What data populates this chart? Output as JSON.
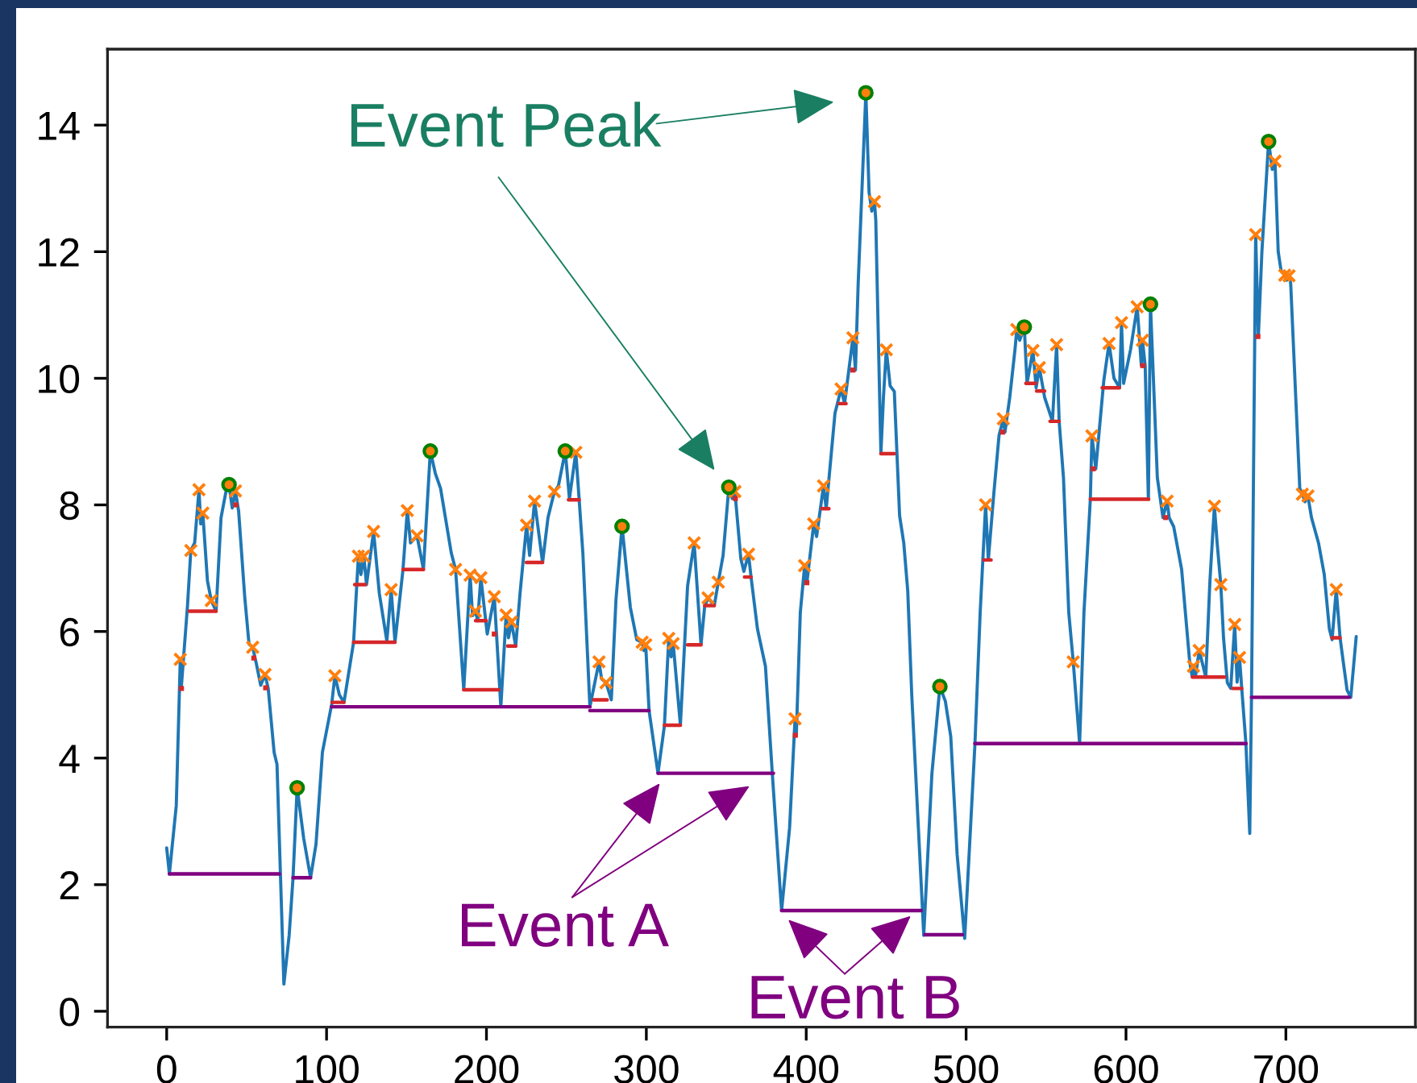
{
  "chart_data": {
    "type": "line",
    "xlim": [
      -37,
      781
    ],
    "ylim": [
      -0.25,
      15.2
    ],
    "xticks": [
      0,
      100,
      200,
      300,
      400,
      500,
      600,
      700
    ],
    "yticks": [
      0,
      2,
      4,
      6,
      8,
      10,
      12,
      14
    ],
    "series": [
      {
        "color": "#1f77b4",
        "x": [
          0,
          1.7,
          6,
          8.5,
          9.1,
          13,
          15.1,
          17.5,
          20.2,
          21.3,
          22.6,
          25.5,
          27.9,
          30.9,
          34,
          37,
          39,
          41,
          43,
          45,
          48.8,
          51.5,
          53.8,
          56,
          58.8,
          61.5,
          63.5,
          67.2,
          69,
          73.3,
          76.6,
          79,
          81.6,
          85.7,
          90,
          93.4,
          97.4,
          103.2,
          105.2,
          108,
          110.9,
          116.9,
          119.9,
          121.5,
          123.3,
          125,
          129.4,
          133,
          137.7,
          140.4,
          142.8,
          147.8,
          150.5,
          152.5,
          156.6,
          160.6,
          164.9,
          168,
          171.3,
          178,
          180.7,
          185.8,
          189.8,
          191.3,
          193.1,
          194.5,
          196.5,
          200.5,
          204.9,
          209,
          212.3,
          213.8,
          215.6,
          218.3,
          221,
          225.1,
          227,
          230.1,
          235.1,
          238.5,
          242.5,
          245,
          249.3,
          251.9,
          255.9,
          258,
          260.3,
          264.7,
          270.4,
          272,
          274.8,
          278.1,
          281,
          284.8,
          290,
          294,
          297.4,
          298.5,
          299.6,
          301.7,
          307.3,
          311.3,
          314,
          315.5,
          316.8,
          321.3,
          325.8,
          329.9,
          334.2,
          336.5,
          338.6,
          342.5,
          345,
          348,
          351.6,
          353.7,
          355.4,
          359.1,
          361,
          363.9,
          365.5,
          369.5,
          374.5,
          378.8,
          384.6,
          389.6,
          393,
          393.8,
          396.3,
          399,
          400.4,
          404.7,
          406.5,
          410.8,
          412.5,
          418,
          421.8,
          424,
          429.2,
          430.8,
          432.5,
          437.3,
          439.3,
          441,
          442.7,
          443.5,
          446.7,
          448.3,
          450.1,
          452.5,
          455.1,
          458.4,
          461,
          463.5,
          466,
          473.5,
          478.6,
          483.6,
          487,
          490.4,
          494.4,
          499.1,
          505.5,
          508.8,
          512.2,
          513.9,
          517.3,
          520.6,
          523.3,
          524.3,
          527.3,
          530.6,
          531.7,
          533.5,
          536.4,
          538.1,
          541.8,
          543.8,
          545.8,
          549.1,
          554,
          556.6,
          558.2,
          560.9,
          564.2,
          567,
          571,
          573.7,
          577.7,
          578.7,
          581.1,
          586.1,
          589.4,
          592.5,
          596,
          597.2,
          598.5,
          602.9,
          607,
          609.6,
          610.3,
          612,
          614,
          615.3,
          619.6,
          623.1,
          625.7,
          627,
          629.8,
          634.8,
          639.8,
          641.3,
          642.2,
          643.5,
          645.8,
          649.9,
          652.5,
          655.3,
          657,
          659.3,
          661,
          663.4,
          665.5,
          668,
          669.5,
          671,
          672.4,
          675,
          677.4,
          678.5,
          681.1,
          682.8,
          685,
          689.2,
          691.5,
          693.2,
          695.2,
          697,
          699.3,
          700.5,
          702,
          703,
          708.7,
          710.3,
          712,
          713.8,
          716,
          720.4,
          724,
          727.2,
          728.9,
          731.5,
          733.9,
          736,
          738.3,
          740.6,
          744
        ],
        "values": [
          2.58,
          2.17,
          3.25,
          5.56,
          5.1,
          6.4,
          7.28,
          7.4,
          8.24,
          7.7,
          7.87,
          6.8,
          6.49,
          6.32,
          7.8,
          8.2,
          8.32,
          7.95,
          8.22,
          7.9,
          6.55,
          5.8,
          5.75,
          5.5,
          5.15,
          5.32,
          5.1,
          4.09,
          3.9,
          0.43,
          1.2,
          2.1,
          3.53,
          2.73,
          2.11,
          2.64,
          4.09,
          4.85,
          5.3,
          5.0,
          4.88,
          5.83,
          7.19,
          6.9,
          7.19,
          6.74,
          7.58,
          6.6,
          5.85,
          6.66,
          5.83,
          6.98,
          7.91,
          7.4,
          7.51,
          6.98,
          8.85,
          8.5,
          8.26,
          7.24,
          6.98,
          5.08,
          6.89,
          6.25,
          6.32,
          6.17,
          6.85,
          5.96,
          6.55,
          4.81,
          6.26,
          5.9,
          6.15,
          5.77,
          6.6,
          7.68,
          7.2,
          8.06,
          7.09,
          7.8,
          8.21,
          8.3,
          8.85,
          8.1,
          8.83,
          8.08,
          7.24,
          4.81,
          5.52,
          5.25,
          5.19,
          4.92,
          6.5,
          7.66,
          6.38,
          5.87,
          5.83,
          5.7,
          5.79,
          4.75,
          3.76,
          4.51,
          5.89,
          5.6,
          5.81,
          4.52,
          6.72,
          7.4,
          5.79,
          6.4,
          6.53,
          6.41,
          6.78,
          7.2,
          8.28,
          8.1,
          8.21,
          7.15,
          6.95,
          7.22,
          6.86,
          6.04,
          5.45,
          3.75,
          1.59,
          2.9,
          4.62,
          4.36,
          6.3,
          7.04,
          6.77,
          7.7,
          7.5,
          8.3,
          7.94,
          9.45,
          9.83,
          9.6,
          10.64,
          10.13,
          11.5,
          14.51,
          12.94,
          12.64,
          12.79,
          12.5,
          8.81,
          9.7,
          10.45,
          9.88,
          9.79,
          7.83,
          7.4,
          6.64,
          5.0,
          1.2,
          3.75,
          5.13,
          4.9,
          4.34,
          2.47,
          1.15,
          4.21,
          6.3,
          8.0,
          7.13,
          8.17,
          9.1,
          9.36,
          9.15,
          9.7,
          10.46,
          10.77,
          10.6,
          10.81,
          9.92,
          10.44,
          9.85,
          10.17,
          9.7,
          9.32,
          10.53,
          9.32,
          8.43,
          6.3,
          5.52,
          4.23,
          6.3,
          8.09,
          9.09,
          8.57,
          9.96,
          10.55,
          10.0,
          9.85,
          10.88,
          9.92,
          10.46,
          11.13,
          10.2,
          10.6,
          10.2,
          8.09,
          11.17,
          8.43,
          7.8,
          8.06,
          7.8,
          7.66,
          6.98,
          5.53,
          5.3,
          5.45,
          5.3,
          5.7,
          5.28,
          6.8,
          7.98,
          7.4,
          6.74,
          5.9,
          5.19,
          5.1,
          6.11,
          5.2,
          5.59,
          5.1,
          4.23,
          2.81,
          4.96,
          12.27,
          10.66,
          12.0,
          13.74,
          13.3,
          13.43,
          12.0,
          11.7,
          11.63,
          11.55,
          11.62,
          11.5,
          8.26,
          8.17,
          8.05,
          8.14,
          7.8,
          7.4,
          6.9,
          6.04,
          5.87,
          6.66,
          5.9,
          5.5,
          5.07,
          4.96,
          5.92
        ]
      },
      {
        "color": "#d62728",
        "x": [
          14.1,
          30.9,
          null,
          103.5,
          110.8,
          null,
          116.9,
          142.8,
          null,
          117.6,
          124.3,
          null,
          147.8,
          160.6,
          null,
          185.8,
          207.6,
          null,
          193.2,
          199.8,
          null,
          213.3,
          218.3,
          null,
          225,
          235.1,
          null,
          251.3,
          258,
          null,
          267,
          275.5,
          null,
          311.3,
          321.3,
          null,
          325.8,
          334.2,
          null,
          336.5,
          342.5,
          null,
          361.4,
          365.5,
          null,
          409.8,
          414.2,
          null,
          420.5,
          424.9,
          null,
          446.7,
          455.1,
          null,
          511.2,
          515.6,
          null,
          537.4,
          543.5,
          null,
          544.1,
          549.1,
          null,
          552.5,
          558.2,
          null,
          577.7,
          614.2,
          null,
          585.1,
          595.8,
          null,
          641.5,
          661.7,
          null,
          666.7,
          672.4,
          null,
          728.9,
          733.9
        ],
        "values": [
          6.32,
          6.32,
          null,
          4.88,
          4.88,
          null,
          5.83,
          5.83,
          null,
          6.74,
          6.74,
          null,
          6.98,
          6.98,
          null,
          5.08,
          5.08,
          null,
          6.17,
          6.17,
          null,
          5.77,
          5.77,
          null,
          7.09,
          7.09,
          null,
          8.08,
          8.08,
          null,
          4.92,
          4.92,
          null,
          4.52,
          4.52,
          null,
          5.79,
          5.79,
          null,
          6.41,
          6.41,
          null,
          6.86,
          6.86,
          null,
          7.94,
          7.94,
          null,
          9.6,
          9.6,
          null,
          8.81,
          8.81,
          null,
          7.13,
          7.13,
          null,
          9.92,
          9.92,
          null,
          9.8,
          9.8,
          null,
          9.32,
          9.32,
          null,
          8.09,
          8.09,
          null,
          9.85,
          9.85,
          null,
          5.28,
          5.28,
          null,
          5.1,
          5.1,
          null,
          5.9,
          5.9
        ]
      },
      {
        "color": "#800080",
        "x": [
          1.7,
          70.5,
          null,
          79,
          90,
          null,
          103.2,
          264.7,
          null,
          264.7,
          301.7,
          null,
          307.3,
          379.5,
          null,
          384.6,
          471.9,
          null,
          474.3,
          497.7,
          null,
          505.5,
          675.1,
          null,
          678.5,
          739.6
        ],
        "values": [
          2.17,
          2.17,
          null,
          2.11,
          2.11,
          null,
          4.81,
          4.81,
          null,
          4.75,
          4.75,
          null,
          3.76,
          3.76,
          null,
          1.59,
          1.59,
          null,
          1.21,
          1.21,
          null,
          4.23,
          4.23,
          null,
          4.96,
          4.96
        ]
      },
      {
        "type": "scatter",
        "color": "#d62728",
        "marker": "square",
        "x": [
          9.25,
          43.2,
          54.5,
          61.9,
          204.9,
          355.7,
          393.2,
          400.4,
          429.2,
          522.8,
          579.5,
          610.5,
          624.8,
          682.5
        ],
        "values": [
          5.1,
          8.0,
          5.58,
          5.11,
          5.96,
          8.1,
          4.36,
          6.77,
          10.13,
          9.15,
          8.57,
          10.2,
          7.8,
          10.66
        ]
      },
      {
        "type": "scatter",
        "color": "#ff7f0e",
        "marker": "cross",
        "x": [
          8.5,
          15.1,
          20.2,
          22.6,
          27.9,
          43,
          53.8,
          61.5,
          105.2,
          119.9,
          123.3,
          129.4,
          140.4,
          150.5,
          156.6,
          180.7,
          189.8,
          193.1,
          196.5,
          204.9,
          212.3,
          215.6,
          225.1,
          230.1,
          242.5,
          255.9,
          270.4,
          274.8,
          297.4,
          299.6,
          314,
          316.8,
          329.9,
          338.6,
          345,
          355.4,
          363.9,
          393,
          399,
          404.7,
          410.8,
          421.8,
          429.2,
          442.7,
          450.1,
          512.2,
          523.3,
          531.7,
          541.8,
          545.8,
          556.6,
          567,
          578.7,
          589.4,
          597.2,
          607,
          610.3,
          625.7,
          642.2,
          645.8,
          655.3,
          659.3,
          668,
          671,
          681.1,
          693.2,
          699.3,
          702,
          710.3,
          713.8,
          731.5
        ],
        "values": [
          5.56,
          7.28,
          8.24,
          7.87,
          6.49,
          8.22,
          5.75,
          5.32,
          5.3,
          7.19,
          7.19,
          7.58,
          6.66,
          7.91,
          7.51,
          6.98,
          6.89,
          6.32,
          6.85,
          6.55,
          6.26,
          6.15,
          7.68,
          8.06,
          8.21,
          8.83,
          5.52,
          5.19,
          5.83,
          5.79,
          5.89,
          5.81,
          7.4,
          6.53,
          6.78,
          8.21,
          7.22,
          4.62,
          7.04,
          7.7,
          8.3,
          9.83,
          10.64,
          12.79,
          10.45,
          8.0,
          9.36,
          10.77,
          10.44,
          10.17,
          10.53,
          5.52,
          9.09,
          10.55,
          10.88,
          11.13,
          10.6,
          8.06,
          5.45,
          5.7,
          7.98,
          6.74,
          6.11,
          5.59,
          12.27,
          13.43,
          11.63,
          11.62,
          8.17,
          8.14,
          6.66
        ]
      },
      {
        "type": "scatter",
        "color": "#008000",
        "marker": "circle",
        "x": [
          39,
          81.6,
          164.9,
          249.3,
          284.8,
          351.6,
          437.3,
          483.6,
          536.4,
          615.3,
          689.2
        ],
        "values": [
          8.32,
          3.53,
          8.85,
          8.85,
          7.66,
          8.28,
          14.51,
          5.13,
          10.81,
          11.17,
          13.74
        ]
      }
    ],
    "annotations": [
      "Event Peak",
      "Event A",
      "Event B"
    ]
  }
}
